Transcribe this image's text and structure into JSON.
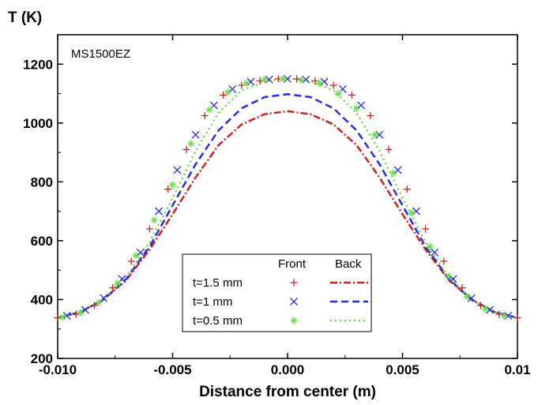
{
  "chart_data": {
    "type": "line",
    "ylabel": "T (K)",
    "xlabel": "Distance from center (m)",
    "annotation": "MS1500EZ",
    "xlim": [
      -0.01,
      0.01
    ],
    "ylim": [
      200,
      1300
    ],
    "xticks": [
      -0.01,
      -0.005,
      0,
      0.005,
      0.01
    ],
    "xtick_labels": [
      "-0.010",
      "-0.005",
      "0.000",
      "0.005",
      "0.01"
    ],
    "yticks": [
      200,
      400,
      600,
      800,
      1000,
      1200
    ],
    "ytick_labels": [
      "200",
      "400",
      "600",
      "800",
      "1000",
      "1200"
    ],
    "grid": false,
    "legend": {
      "placement": "bottom-center",
      "headers": [
        "Front",
        "Back"
      ],
      "rows": [
        "t=1.5 mm",
        "t=1 mm",
        "t=0.5 mm"
      ]
    },
    "series": [
      {
        "name": "t=1.5 mm",
        "role": "Front",
        "style": "plus",
        "color": "#cc2222",
        "x": [
          -0.01,
          -0.0092,
          -0.0084,
          -0.0076,
          -0.0068,
          -0.006,
          -0.0052,
          -0.0044,
          -0.0036,
          -0.0028,
          -0.002,
          -0.0012,
          -0.0004,
          0.0004,
          0.0012,
          0.002,
          0.0028,
          0.0036,
          0.0044,
          0.0052,
          0.006,
          0.0068,
          0.0076,
          0.0084,
          0.0092,
          0.01
        ],
        "y": [
          338,
          350,
          380,
          440,
          530,
          640,
          775,
          910,
          1025,
          1095,
          1128,
          1143,
          1150,
          1150,
          1143,
          1128,
          1095,
          1025,
          910,
          775,
          640,
          530,
          440,
          380,
          350,
          338
        ]
      },
      {
        "name": "t=1 mm",
        "role": "Front",
        "style": "cross",
        "color": "#2a2ae0",
        "x": [
          -0.0096,
          -0.0088,
          -0.008,
          -0.0072,
          -0.0064,
          -0.0056,
          -0.0048,
          -0.004,
          -0.0032,
          -0.0024,
          -0.0016,
          -0.0008,
          0,
          0.0008,
          0.0016,
          0.0024,
          0.0032,
          0.004,
          0.0048,
          0.0056,
          0.0064,
          0.0072,
          0.008,
          0.0088,
          0.0096
        ],
        "y": [
          345,
          365,
          405,
          470,
          560,
          700,
          840,
          960,
          1060,
          1115,
          1140,
          1148,
          1150,
          1148,
          1140,
          1115,
          1060,
          960,
          840,
          700,
          560,
          470,
          405,
          365,
          345
        ]
      },
      {
        "name": "t=0.5 mm",
        "role": "Front",
        "style": "star",
        "color": "#66dd44",
        "x": [
          -0.0098,
          -0.009,
          -0.0082,
          -0.0074,
          -0.0066,
          -0.0058,
          -0.005,
          -0.0042,
          -0.0034,
          -0.0026,
          -0.0018,
          -0.001,
          -0.0002,
          0.0006,
          0.0014,
          0.0022,
          0.003,
          0.0038,
          0.0046,
          0.0054,
          0.0062,
          0.007,
          0.0078,
          0.0086,
          0.0094
        ],
        "y": [
          340,
          355,
          390,
          455,
          550,
          670,
          790,
          930,
          1045,
          1105,
          1135,
          1148,
          1150,
          1146,
          1135,
          1100,
          1050,
          960,
          830,
          695,
          580,
          480,
          410,
          368,
          345
        ]
      },
      {
        "name": "t=1.5 mm",
        "role": "Back",
        "style": "dashdot",
        "color": "#cc2222",
        "x": [
          -0.01,
          -0.009,
          -0.008,
          -0.007,
          -0.006,
          -0.005,
          -0.004,
          -0.003,
          -0.002,
          -0.001,
          0,
          0.001,
          0.002,
          0.003,
          0.004,
          0.005,
          0.006,
          0.007,
          0.008,
          0.009,
          0.01
        ],
        "y": [
          338,
          358,
          400,
          468,
          570,
          690,
          815,
          925,
          995,
          1030,
          1040,
          1030,
          995,
          925,
          815,
          690,
          570,
          468,
          400,
          358,
          338
        ]
      },
      {
        "name": "t=1 mm",
        "role": "Back",
        "style": "dash",
        "color": "#2a2ae0",
        "x": [
          -0.01,
          -0.009,
          -0.008,
          -0.007,
          -0.006,
          -0.005,
          -0.004,
          -0.003,
          -0.002,
          -0.001,
          0,
          0.001,
          0.002,
          0.003,
          0.004,
          0.005,
          0.006,
          0.007,
          0.008,
          0.009,
          0.01
        ],
        "y": [
          338,
          358,
          400,
          472,
          580,
          720,
          860,
          975,
          1050,
          1088,
          1098,
          1088,
          1050,
          975,
          860,
          720,
          580,
          472,
          400,
          358,
          338
        ]
      },
      {
        "name": "t=0.5 mm",
        "role": "Back",
        "style": "dot",
        "color": "#66dd44",
        "x": [
          -0.01,
          -0.009,
          -0.008,
          -0.007,
          -0.006,
          -0.005,
          -0.004,
          -0.003,
          -0.002,
          -0.001,
          0,
          0.001,
          0.002,
          0.003,
          0.004,
          0.005,
          0.006,
          0.007,
          0.008,
          0.009,
          0.01
        ],
        "y": [
          338,
          358,
          402,
          478,
          595,
          745,
          905,
          1035,
          1110,
          1142,
          1152,
          1142,
          1110,
          1035,
          905,
          745,
          595,
          478,
          402,
          358,
          338
        ]
      }
    ]
  }
}
